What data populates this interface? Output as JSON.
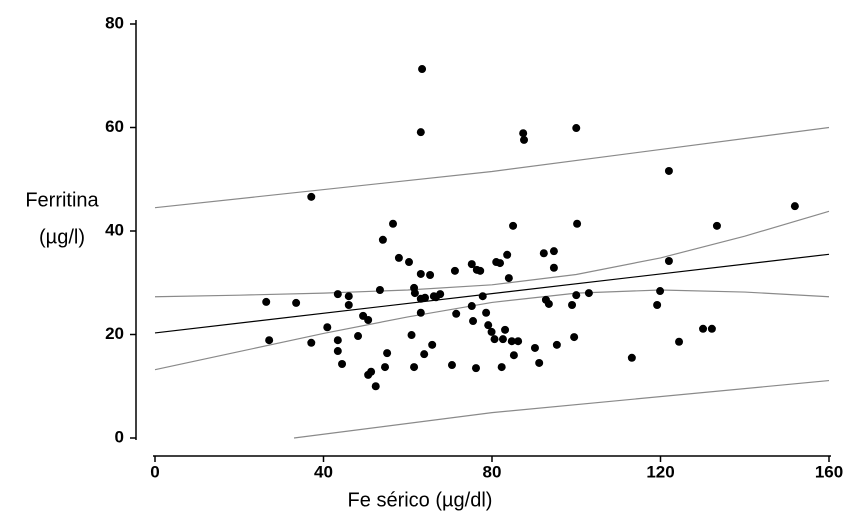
{
  "chart_data": {
    "type": "scatter",
    "x_label": "Fe sérico (µg/dl)",
    "y_label": [
      "Ferritina",
      "(µg/l)"
    ],
    "xlim": [
      0,
      160
    ],
    "xticks": [
      0,
      40,
      80,
      120,
      160
    ],
    "ylim": [
      0,
      80
    ],
    "yticks": [
      0,
      20,
      40,
      60,
      80
    ],
    "series": [
      {
        "color": "#000000",
        "x": [
          26.4,
          27.1,
          33.5,
          37.1,
          37.1,
          40.9,
          43.4,
          43.4,
          43.4,
          44.4,
          46.0,
          46.0,
          48.2,
          49.4,
          50.6,
          50.6,
          51.3,
          52.4,
          53.4,
          54.1,
          54.6,
          55.1,
          56.5,
          57.9,
          60.3,
          60.9,
          61.5,
          61.5,
          61.7,
          63.1,
          63.1,
          63.4,
          63.1,
          63.1,
          63.9,
          64.1,
          65.3,
          65.8,
          66.2,
          66.7,
          67.7,
          70.5,
          71.2,
          71.5,
          75.2,
          75.2,
          75.5,
          76.2,
          76.4,
          77.2,
          77.8,
          78.6,
          79.1,
          79.9,
          80.6,
          81.0,
          81.9,
          82.3,
          82.6,
          83.1,
          84.0,
          83.6,
          84.7,
          85.0,
          85.2,
          86.2,
          87.4,
          87.6,
          90.2,
          91.2,
          92.3,
          92.8,
          93.5,
          94.7,
          94.7,
          95.4,
          99.0,
          99.5,
          100.0,
          100.0,
          100.2,
          103.0,
          113.2,
          119.2,
          119.9,
          122.0,
          122.0,
          124.4,
          130.1,
          132.2,
          133.4,
          151.9
        ],
        "values": [
          26.3,
          18.9,
          26.1,
          46.6,
          18.4,
          21.4,
          27.8,
          18.9,
          16.8,
          14.3,
          27.4,
          25.7,
          19.7,
          23.6,
          22.8,
          12.2,
          12.8,
          10.0,
          28.6,
          38.3,
          13.7,
          16.4,
          41.4,
          34.8,
          34.0,
          19.9,
          29.0,
          13.7,
          28.0,
          31.7,
          26.9,
          71.3,
          59.1,
          24.2,
          16.2,
          27.1,
          31.5,
          18.0,
          27.4,
          27.2,
          27.8,
          14.1,
          32.3,
          24.0,
          33.6,
          25.5,
          22.6,
          13.5,
          32.5,
          32.3,
          27.4,
          24.2,
          21.8,
          20.5,
          19.1,
          34.0,
          33.8,
          13.7,
          19.1,
          20.9,
          30.9,
          35.4,
          18.7,
          41.0,
          16.0,
          18.7,
          58.9,
          57.6,
          17.4,
          14.5,
          35.7,
          26.7,
          25.9,
          36.1,
          32.9,
          18.0,
          25.7,
          19.5,
          27.6,
          59.9,
          41.4,
          28.0,
          15.5,
          25.7,
          28.4,
          51.6,
          34.2,
          18.6,
          21.1,
          21.1,
          41.0,
          44.8
        ]
      }
    ],
    "lines": [
      {
        "color": "#000000",
        "x": [
          0,
          160
        ],
        "values": [
          20.3,
          35.5
        ]
      },
      {
        "color": "#8a8a8a",
        "x": [
          0,
          20,
          40,
          60,
          80,
          100,
          120,
          140,
          160
        ],
        "values": [
          27.3,
          27.6,
          28.0,
          28.6,
          29.6,
          31.6,
          34.8,
          39.0,
          43.8
        ]
      },
      {
        "color": "#8a8a8a",
        "x": [
          0,
          20,
          40,
          60,
          80,
          100,
          120,
          140,
          160
        ],
        "values": [
          13.2,
          16.7,
          20.2,
          23.4,
          26.2,
          28.0,
          28.6,
          28.2,
          27.3
        ]
      },
      {
        "color": "#8a8a8a",
        "x": [
          0,
          80,
          160
        ],
        "values": [
          44.5,
          51.5,
          60.0
        ]
      },
      {
        "color": "#8a8a8a",
        "x": [
          33,
          80,
          160
        ],
        "values": [
          0,
          4.9,
          11.1
        ]
      }
    ]
  }
}
